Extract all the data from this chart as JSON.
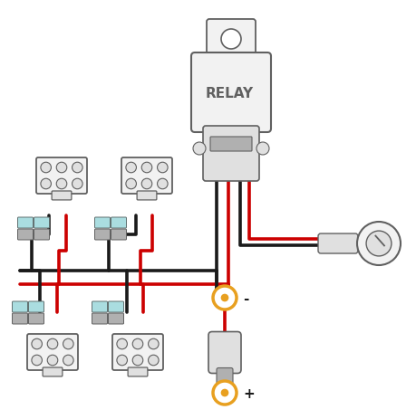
{
  "bg_color": "#ffffff",
  "BK": "#1a1a1a",
  "RD": "#cc0000",
  "GR": "#606060",
  "LG": "#b0b0b0",
  "EG": "#e0e0e0",
  "FG": "#f2f2f2",
  "OR": "#e8a020",
  "CB": "#aadde0",
  "relay_label": "RELAY",
  "minus_label": "-",
  "plus_label": "+"
}
